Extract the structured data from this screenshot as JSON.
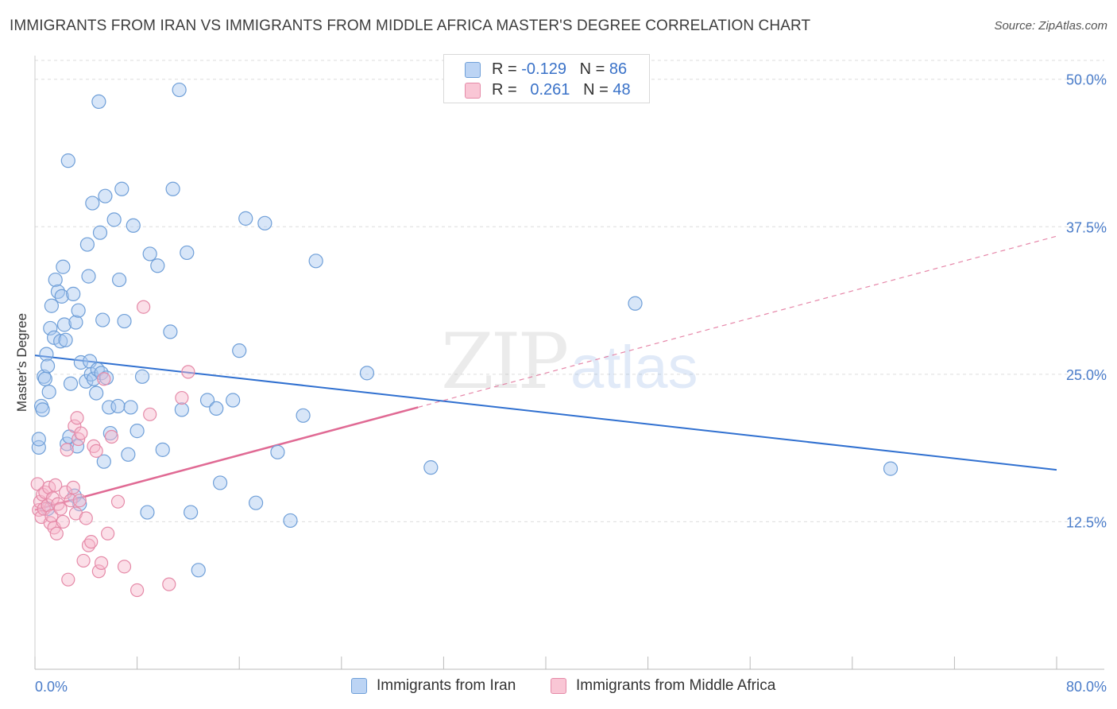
{
  "title": "IMMIGRANTS FROM IRAN VS IMMIGRANTS FROM MIDDLE AFRICA MASTER'S DEGREE CORRELATION CHART",
  "source": "Source: ZipAtlas.com",
  "watermark": {
    "zip": "ZIP",
    "atlas": "atlas"
  },
  "legend": {
    "iran": {
      "r_label": "R =",
      "r_value": "-0.129",
      "n_label": "N =",
      "n_value": "86"
    },
    "africa": {
      "r_label": "R =",
      "r_value": "0.261",
      "n_label": "N =",
      "n_value": "48"
    }
  },
  "colors": {
    "iran_fill": "#a8c8f0",
    "iran_stroke": "#6f9fd8",
    "iran_line": "#3070d0",
    "africa_fill": "#f7b8cb",
    "africa_stroke": "#e58aa8",
    "africa_line": "#e06a94",
    "grid": "#dddddd",
    "tick_text": "#4a7cc9"
  },
  "chart_data": {
    "type": "scatter",
    "xlabel": "",
    "ylabel": "Master's Degree",
    "xlim": [
      0,
      80
    ],
    "ylim": [
      0,
      52
    ],
    "x_tick_labels": [
      {
        "value": 0,
        "label": "0.0%"
      },
      {
        "value": 80,
        "label": "80.0%"
      }
    ],
    "y_tick_labels": [
      {
        "value": 12.5,
        "label": "12.5%"
      },
      {
        "value": 25.0,
        "label": "25.0%"
      },
      {
        "value": 37.5,
        "label": "37.5%"
      },
      {
        "value": 50.0,
        "label": "50.0%"
      }
    ],
    "grid": true,
    "series": [
      {
        "name": "Immigrants from Iran",
        "r": -0.129,
        "n": 86,
        "trend": {
          "x": [
            0,
            80
          ],
          "y": [
            26.6,
            16.9
          ],
          "style": "solid"
        },
        "points": [
          [
            0.3,
            18.8
          ],
          [
            0.3,
            19.5
          ],
          [
            0.5,
            22.3
          ],
          [
            0.6,
            22.0
          ],
          [
            0.7,
            24.8
          ],
          [
            0.8,
            24.6
          ],
          [
            0.9,
            26.7
          ],
          [
            1.0,
            25.7
          ],
          [
            1.1,
            23.5
          ],
          [
            1.2,
            28.9
          ],
          [
            1.3,
            30.8
          ],
          [
            1.5,
            28.1
          ],
          [
            1.6,
            33.0
          ],
          [
            1.8,
            32.0
          ],
          [
            2.0,
            27.8
          ],
          [
            2.1,
            31.6
          ],
          [
            2.2,
            34.1
          ],
          [
            2.3,
            29.2
          ],
          [
            2.4,
            27.9
          ],
          [
            2.5,
            19.1
          ],
          [
            2.6,
            43.1
          ],
          [
            2.7,
            19.7
          ],
          [
            2.8,
            24.2
          ],
          [
            3.0,
            31.8
          ],
          [
            3.1,
            14.7
          ],
          [
            3.2,
            29.4
          ],
          [
            3.3,
            18.9
          ],
          [
            3.4,
            30.4
          ],
          [
            3.5,
            14.0
          ],
          [
            3.6,
            26.0
          ],
          [
            4.0,
            24.4
          ],
          [
            4.1,
            36.0
          ],
          [
            4.2,
            33.3
          ],
          [
            4.3,
            26.1
          ],
          [
            4.4,
            25.0
          ],
          [
            4.5,
            39.5
          ],
          [
            4.6,
            24.6
          ],
          [
            4.8,
            23.4
          ],
          [
            4.9,
            25.4
          ],
          [
            5.0,
            48.1
          ],
          [
            5.1,
            37.0
          ],
          [
            5.2,
            25.1
          ],
          [
            5.3,
            29.6
          ],
          [
            5.4,
            17.6
          ],
          [
            5.5,
            40.1
          ],
          [
            5.6,
            24.7
          ],
          [
            5.8,
            22.2
          ],
          [
            5.9,
            20.0
          ],
          [
            6.2,
            38.1
          ],
          [
            6.5,
            22.3
          ],
          [
            6.6,
            33.0
          ],
          [
            6.8,
            40.7
          ],
          [
            7.0,
            29.5
          ],
          [
            7.3,
            18.2
          ],
          [
            7.5,
            22.2
          ],
          [
            7.7,
            37.6
          ],
          [
            8.0,
            20.2
          ],
          [
            8.4,
            24.8
          ],
          [
            8.8,
            13.3
          ],
          [
            9.0,
            35.2
          ],
          [
            9.6,
            34.2
          ],
          [
            10.0,
            18.6
          ],
          [
            10.6,
            28.6
          ],
          [
            10.8,
            40.7
          ],
          [
            11.3,
            49.1
          ],
          [
            11.5,
            22.0
          ],
          [
            11.9,
            35.3
          ],
          [
            12.2,
            13.3
          ],
          [
            12.8,
            8.4
          ],
          [
            13.5,
            22.8
          ],
          [
            14.2,
            22.1
          ],
          [
            14.5,
            15.8
          ],
          [
            15.5,
            22.8
          ],
          [
            16.0,
            27.0
          ],
          [
            16.5,
            38.2
          ],
          [
            17.3,
            14.1
          ],
          [
            18.0,
            37.8
          ],
          [
            19.0,
            18.4
          ],
          [
            20.0,
            12.6
          ],
          [
            21.0,
            21.5
          ],
          [
            22.0,
            34.6
          ],
          [
            26.0,
            25.1
          ],
          [
            31.0,
            17.1
          ],
          [
            47.0,
            31.0
          ],
          [
            67.0,
            17.0
          ],
          [
            1.0,
            13.6
          ]
        ]
      },
      {
        "name": "Immigrants from Middle Africa",
        "r": 0.261,
        "n": 48,
        "trend": {
          "x": [
            0,
            30
          ],
          "y": [
            13.5,
            22.2
          ],
          "style": "solid",
          "extension": {
            "x": [
              30,
              80
            ],
            "y": [
              22.2,
              36.7
            ],
            "style": "dashed"
          }
        },
        "points": [
          [
            0.2,
            15.7
          ],
          [
            0.3,
            13.5
          ],
          [
            0.4,
            14.2
          ],
          [
            0.5,
            12.9
          ],
          [
            0.6,
            14.8
          ],
          [
            0.7,
            13.6
          ],
          [
            0.8,
            15.0
          ],
          [
            1.0,
            13.9
          ],
          [
            1.1,
            15.4
          ],
          [
            1.2,
            12.4
          ],
          [
            1.3,
            13.0
          ],
          [
            1.4,
            14.5
          ],
          [
            1.5,
            12.0
          ],
          [
            1.6,
            15.6
          ],
          [
            1.7,
            11.5
          ],
          [
            1.8,
            14.0
          ],
          [
            2.0,
            13.6
          ],
          [
            2.2,
            12.5
          ],
          [
            2.4,
            15.0
          ],
          [
            2.5,
            18.6
          ],
          [
            2.6,
            7.6
          ],
          [
            2.8,
            14.3
          ],
          [
            3.0,
            15.4
          ],
          [
            3.1,
            20.6
          ],
          [
            3.2,
            13.2
          ],
          [
            3.3,
            21.3
          ],
          [
            3.4,
            19.5
          ],
          [
            3.5,
            14.3
          ],
          [
            3.6,
            20.0
          ],
          [
            3.8,
            9.2
          ],
          [
            4.0,
            12.8
          ],
          [
            4.2,
            10.5
          ],
          [
            4.4,
            10.8
          ],
          [
            4.6,
            18.9
          ],
          [
            4.8,
            18.5
          ],
          [
            5.0,
            8.3
          ],
          [
            5.2,
            9.0
          ],
          [
            5.4,
            24.6
          ],
          [
            5.7,
            11.5
          ],
          [
            6.0,
            19.7
          ],
          [
            6.5,
            14.2
          ],
          [
            7.0,
            8.7
          ],
          [
            8.0,
            6.7
          ],
          [
            8.5,
            30.7
          ],
          [
            9.0,
            21.6
          ],
          [
            10.5,
            7.2
          ],
          [
            11.5,
            23.0
          ],
          [
            12.0,
            25.2
          ]
        ]
      }
    ]
  },
  "bottom_legend": {
    "iran": "Immigrants from Iran",
    "africa": "Immigrants from Middle Africa"
  }
}
